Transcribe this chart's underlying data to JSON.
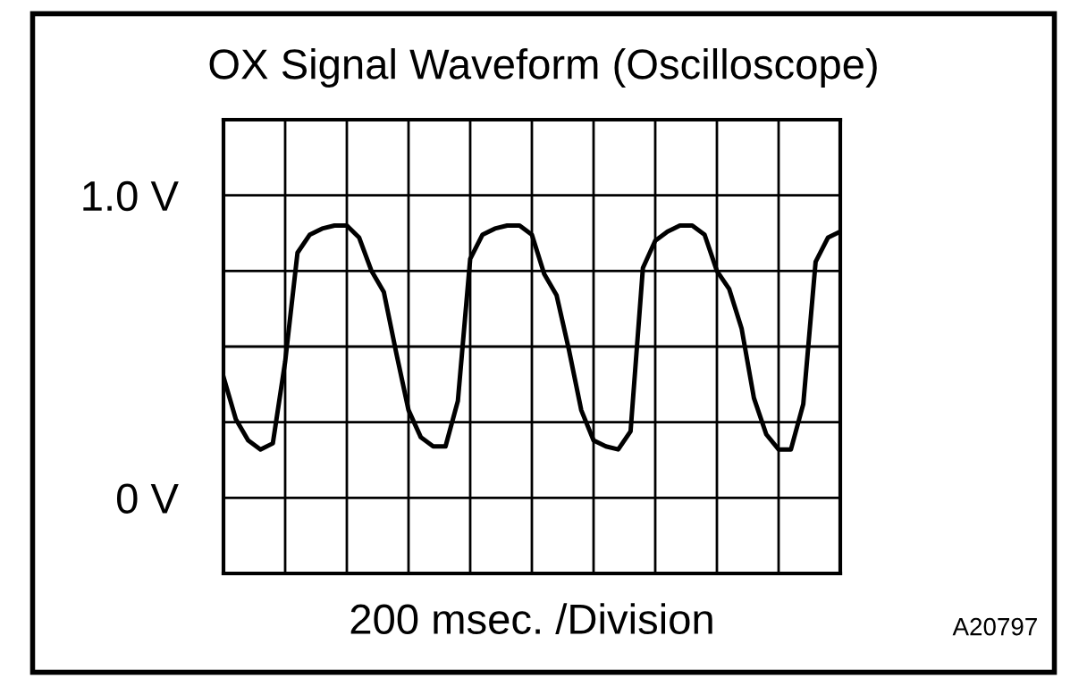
{
  "chart_data": {
    "type": "line",
    "title": "OX Signal Waveform (Oscilloscope)",
    "xlabel": "200 msec. /Division",
    "annotations": [
      "A20797"
    ],
    "categories": [
      null,
      null,
      null,
      null,
      null,
      null,
      null,
      null,
      null,
      null,
      null,
      null,
      null,
      null,
      null,
      null,
      null,
      null,
      null,
      null,
      null,
      null,
      null,
      null,
      null,
      null,
      null,
      null,
      null,
      null,
      null,
      null,
      null,
      null,
      null,
      null,
      null,
      null,
      null,
      null,
      null,
      null,
      null,
      null,
      null,
      null,
      null,
      null,
      null,
      null,
      null
    ],
    "series": [
      {
        "color": "#000000",
        "values": [
          0.4,
          0.26,
          0.19,
          0.16,
          0.18,
          0.45,
          0.81,
          0.87,
          0.89,
          0.9,
          0.9,
          0.86,
          0.75,
          0.68,
          0.48,
          0.29,
          0.2,
          0.17,
          0.17,
          0.32,
          0.79,
          0.87,
          0.89,
          0.9,
          0.9,
          0.87,
          0.74,
          0.67,
          0.49,
          0.29,
          0.19,
          0.17,
          0.16,
          0.22,
          0.76,
          0.85,
          0.88,
          0.9,
          0.9,
          0.87,
          0.75,
          0.69,
          0.56,
          0.33,
          0.21,
          0.16,
          0.16,
          0.31,
          0.78,
          0.86,
          0.88
        ]
      }
    ],
    "ylim": [
      -0.25,
      1.25
    ],
    "yticks": [
      {
        "value": -0.25,
        "label": null
      },
      {
        "value": 0,
        "label": "0 V"
      },
      {
        "value": 0.25,
        "label": null
      },
      {
        "value": 0.5,
        "label": null
      },
      {
        "value": 0.75,
        "label": null
      },
      {
        "value": 1.0,
        "label": "1.0 V"
      },
      {
        "value": 1.25,
        "label": null
      }
    ],
    "tick_labels": "y",
    "grid": true,
    "line_style": "solid",
    "marker": "none"
  }
}
